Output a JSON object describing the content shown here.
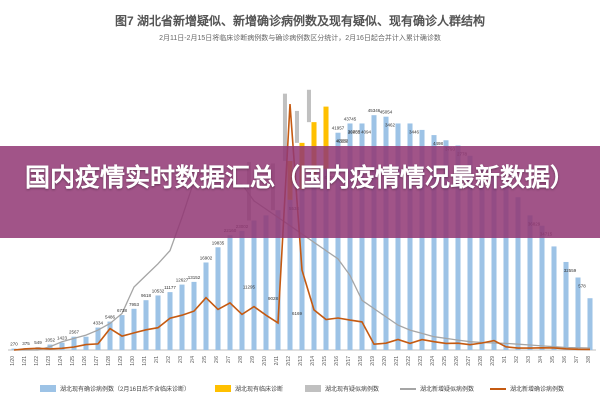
{
  "chart_data": {
    "type": "bar",
    "title": "图7 湖北省新增疑似、新增确诊病例数及现有疑似、现有确诊人群结构",
    "subtitle": "2月11日-2月15日将临床诊断病例数与确诊病例数区分统计，2月16日起合并计入累计确诊数",
    "categories": [
      "1/20",
      "1/21",
      "1/22",
      "1/23",
      "1/24",
      "1/25",
      "1/26",
      "1/27",
      "1/28",
      "1/29",
      "1/30",
      "1/31",
      "2/1",
      "2/2",
      "2/3",
      "2/4",
      "2/5",
      "2/6",
      "2/7",
      "2/8",
      "2/9",
      "2/10",
      "2/11",
      "2/12",
      "2/13",
      "2/14",
      "2/15",
      "2/16",
      "2/17",
      "2/18",
      "2/19",
      "2/20",
      "2/21",
      "2/22",
      "2/23",
      "2/24",
      "2/25",
      "2/26",
      "2/27",
      "2/28",
      "2/29",
      "3/1",
      "3/2",
      "3/3",
      "3/4",
      "3/5",
      "3/6",
      "3/7",
      "3/8"
    ],
    "ylim": [
      0,
      56000
    ],
    "series": [
      {
        "name": "湖北现有确诊病例数（2月16日后不含临床诊断）",
        "kind": "bar",
        "color": "#9dc3e6",
        "values": [
          270,
          375,
          549,
          1052,
          1423,
          2567,
          2567,
          4334,
          5486,
          6738,
          7953,
          9618,
          10532,
          11177,
          12627,
          13152,
          16902,
          19835,
          22160,
          23002,
          25000,
          26000,
          27000,
          29000,
          31000,
          33000,
          35000,
          41957,
          43745,
          43745,
          45346,
          45054,
          43745,
          43745,
          42500,
          41500,
          40500,
          39500,
          37500,
          35000,
          33500,
          31500,
          29500,
          26000,
          24000,
          20000,
          17000,
          14000,
          10000
        ]
      },
      {
        "name": "湖北现有临床诊断",
        "kind": "bar",
        "color": "#ffc000",
        "values": [
          null,
          null,
          null,
          null,
          null,
          null,
          null,
          null,
          null,
          null,
          null,
          null,
          null,
          null,
          null,
          null,
          null,
          null,
          null,
          null,
          null,
          null,
          null,
          7500,
          9000,
          11000,
          12000,
          null,
          null,
          null,
          null,
          null,
          null,
          null,
          null,
          null,
          null,
          null,
          null,
          null,
          null,
          null,
          null,
          null,
          null,
          null,
          null,
          null,
          null
        ]
      },
      {
        "name": "湖北现有疑似病例数",
        "kind": "bar",
        "color": "#c0c0c0",
        "values": [
          null,
          null,
          null,
          null,
          null,
          null,
          null,
          null,
          null,
          null,
          null,
          null,
          null,
          null,
          null,
          null,
          null,
          null,
          null,
          null,
          11295,
          null,
          9028,
          13000,
          6169,
          6250,
          null,
          null,
          null,
          null,
          null,
          null,
          null,
          null,
          null,
          null,
          null,
          null,
          null,
          null,
          null,
          null,
          null,
          null,
          null,
          null,
          null,
          null,
          null
        ]
      },
      {
        "name": "湖北新增疑似病例数",
        "kind": "line",
        "color": "#a5a5a5",
        "values": [
          0,
          0,
          0,
          200,
          500,
          700,
          900,
          1200,
          1600,
          2200,
          3800,
          4500,
          5200,
          6000,
          8000,
          10200,
          11000,
          10500,
          10000,
          10000,
          9000,
          8500,
          8000,
          7500,
          7000,
          6500,
          6000,
          5500,
          4500,
          3000,
          2500,
          2000,
          1500,
          1200,
          1000,
          800,
          700,
          600,
          500,
          450,
          420,
          400,
          350,
          300,
          250,
          200,
          150,
          130,
          120
        ]
      },
      {
        "name": "湖北新增确诊病例数",
        "kind": "line",
        "color": "#c55a11",
        "values": [
          0,
          72,
          105,
          69,
          105,
          180,
          323,
          371,
          1291,
          840,
          1032,
          1220,
          1347,
          1921,
          2103,
          2345,
          3156,
          2447,
          2841,
          2147,
          2618,
          2097,
          1638,
          14840,
          4823,
          2420,
          1843,
          1933,
          1807,
          1693,
          349,
          411,
          631,
          398,
          630,
          499,
          401,
          409,
          318,
          423,
          570,
          196,
          114,
          115,
          134,
          126,
          74,
          41,
          36
        ]
      }
    ],
    "data_labels": {
      "confirmed": [
        "270",
        "375",
        "549",
        "1052",
        "1423",
        "2567",
        "",
        "4334",
        "5486",
        "6738",
        "7953",
        "9618",
        "10532",
        "11177",
        "12627",
        "13152",
        "16902",
        "19835",
        "22160",
        "23002",
        "",
        "",
        "",
        "",
        "",
        "",
        "",
        "41957",
        "43745",
        "",
        "45346",
        "45054",
        "",
        "",
        "",
        "",
        "",
        "",
        "",
        "",
        "",
        "",
        "",
        "",
        "",
        "",
        "",
        "",
        ""
      ],
      "suspected": [
        "",
        "",
        "",
        "",
        "",
        "",
        "",
        "",
        "",
        "",
        "",
        "",
        "",
        "",
        "",
        "",
        "",
        "",
        "",
        "",
        "11295",
        "",
        "9028",
        "",
        "6169",
        "",
        "",
        "",
        "",
        "",
        "",
        "",
        "",
        "",
        "",
        "",
        "",
        "",
        "",
        "",
        "",
        "",
        "",
        "",
        "",
        "",
        "",
        "",
        ""
      ],
      "extra": [
        {
          "text": "5534",
          "at": 23
        },
        {
          "text": "4326",
          "at": 27
        },
        {
          "text": "4094",
          "at": 29
        },
        {
          "text": "3462",
          "at": 31
        },
        {
          "text": "3446",
          "at": 33
        },
        {
          "text": "4498",
          "at": 35
        },
        {
          "text": "3793",
          "at": 36
        },
        {
          "text": "2778",
          "at": 37
        },
        {
          "text": "2967",
          "at": 39
        },
        {
          "text": "36829",
          "at": 43
        },
        {
          "text": "34715",
          "at": 44
        },
        {
          "text": "32559",
          "at": 46
        },
        {
          "text": "578",
          "at": 47
        },
        {
          "text": "39753",
          "at": 28
        },
        {
          "text": "42003",
          "at": 26
        },
        {
          "text": "42253",
          "at": 27
        },
        {
          "text": "26885",
          "at": 28
        }
      ]
    },
    "legend_position": "bottom",
    "grid": false
  },
  "overlay": {
    "headline": "国内疫情实时数据汇总（国内疫情情况最新数据）"
  }
}
